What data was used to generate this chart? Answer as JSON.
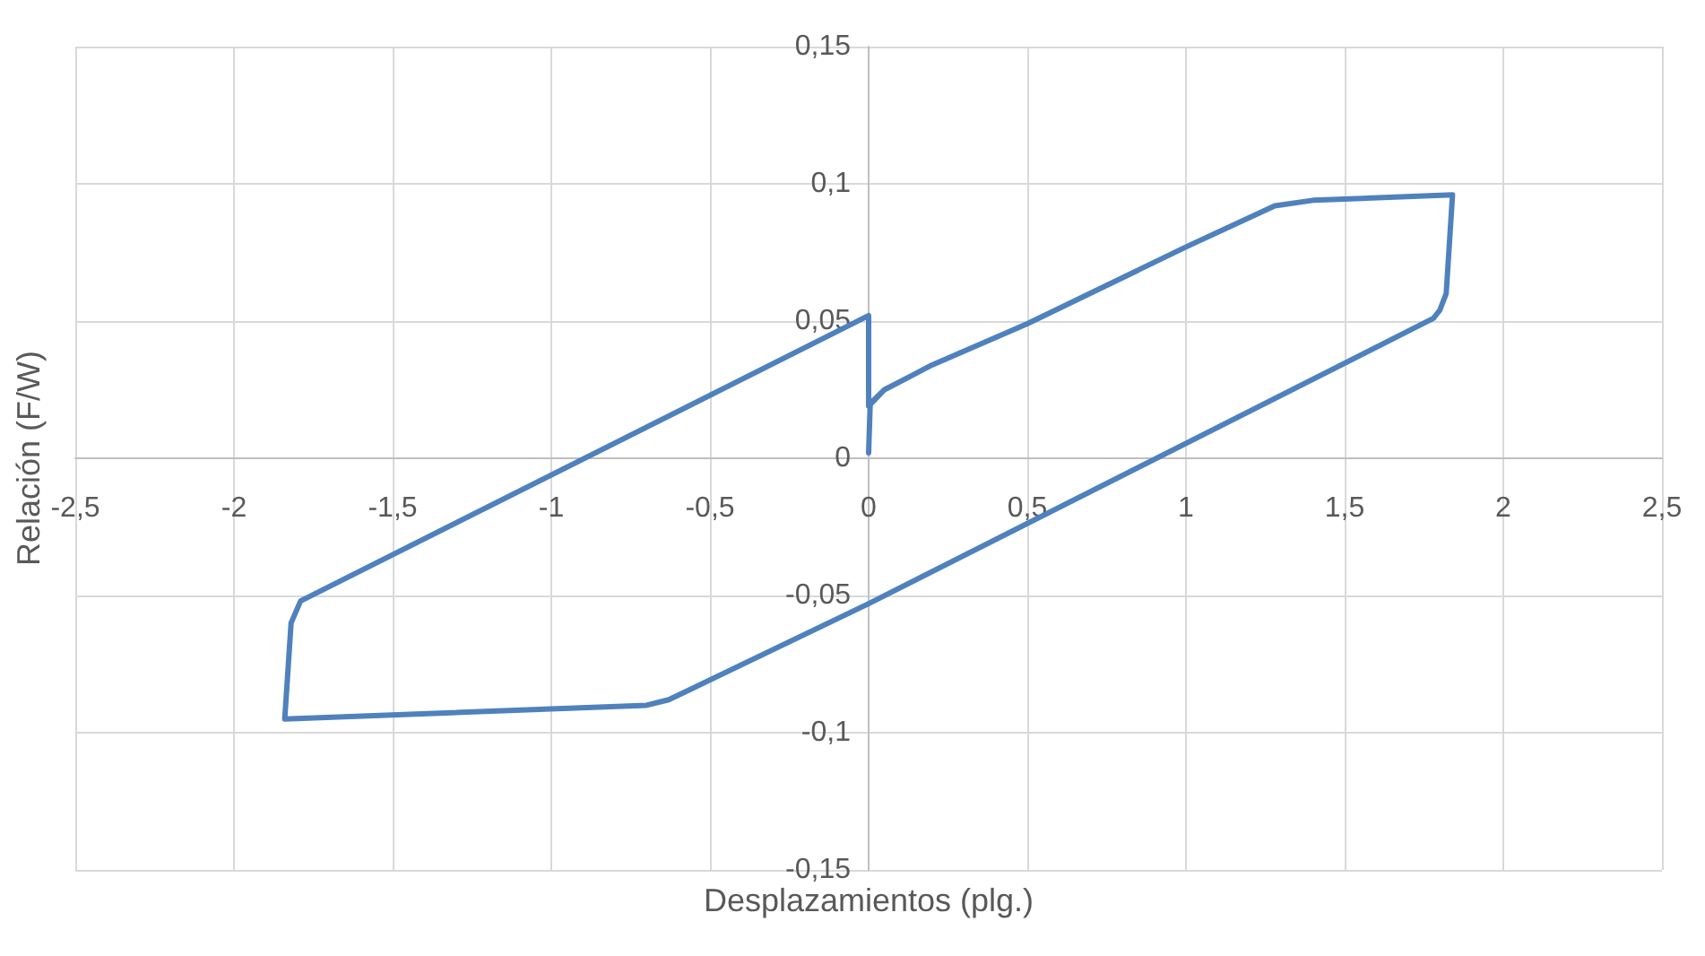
{
  "chart_data": {
    "type": "line",
    "xlabel": "Desplazamientos (plg.)",
    "ylabel": "Relación (F/W)",
    "grid": true,
    "marker": "none",
    "line_style": "solid",
    "xlim": [
      -2.5,
      2.5
    ],
    "ylim": [
      -0.15,
      0.15
    ],
    "xticks": [
      {
        "value": -2.5,
        "label": "-2,5"
      },
      -2,
      {
        "value": -1.5,
        "label": "-1,5"
      },
      -1,
      {
        "value": -0.5,
        "label": "-0,5"
      },
      0,
      {
        "value": 0.5,
        "label": "0,5"
      },
      1,
      {
        "value": 1.5,
        "label": "1,5"
      },
      2,
      {
        "value": 2.5,
        "label": "2,5"
      }
    ],
    "yticks": [
      {
        "value": -0.15,
        "label": "-0,15"
      },
      {
        "value": -0.1,
        "label": "-0,1"
      },
      {
        "value": -0.05,
        "label": "-0,05"
      },
      0,
      {
        "value": 0.05,
        "label": "0,05"
      },
      {
        "value": 0.1,
        "label": "0,1"
      },
      {
        "value": 0.15,
        "label": "0,15"
      }
    ],
    "series": [
      {
        "color": "#4f81bd",
        "x": [
          0,
          0.005,
          0.05,
          0.2,
          0.5,
          1.0,
          1.28,
          1.4,
          1.84,
          1.82,
          1.8,
          1.78,
          0,
          -0.63,
          -0.7,
          -1.84,
          -1.82,
          -1.79,
          0,
          0,
          0.05,
          0.2,
          0.5
        ],
        "values": [
          0.002,
          0.02,
          0.025,
          0.034,
          0.049,
          0.077,
          0.092,
          0.094,
          0.096,
          0.06,
          0.054,
          0.051,
          -0.053,
          -0.088,
          -0.09,
          -0.095,
          -0.06,
          -0.052,
          0.052,
          0.019,
          0.025,
          0.034,
          0.049
        ]
      }
    ]
  }
}
